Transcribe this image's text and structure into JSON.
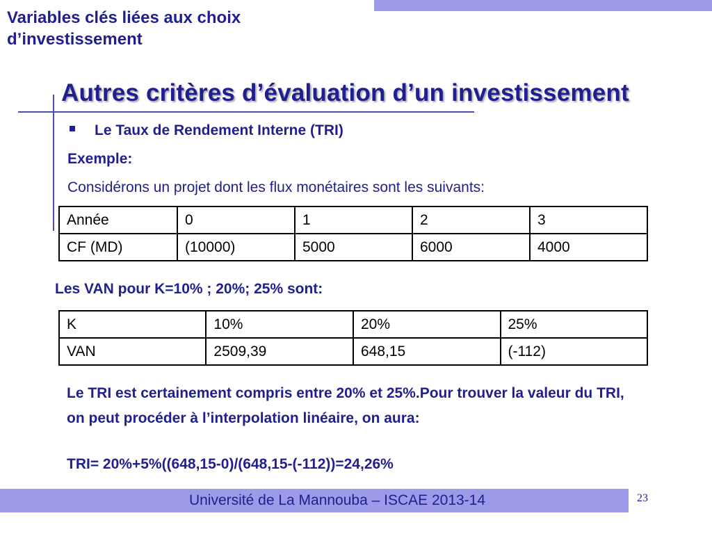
{
  "header": {
    "title": "Variables clés liées aux choix d’investissement"
  },
  "slide": {
    "title": "Autres critères d’évaluation d’un investissement",
    "bullet": "Le Taux de Rendement Interne (TRI)",
    "example_label": "Exemple:",
    "intro": "Considérons un projet dont les flux monétaires sont les suivants:"
  },
  "cashflow_table": {
    "rows": [
      [
        "Année",
        "0",
        "1",
        "2",
        "3"
      ],
      [
        "CF (MD)",
        "(10000)",
        "5000",
        "6000",
        "4000"
      ]
    ]
  },
  "van_heading": "Les VAN pour K=10% ; 20%; 25% sont:",
  "van_table": {
    "rows": [
      [
        "K",
        "10%",
        "20%",
        "25%"
      ],
      [
        "VAN",
        "2509,39",
        "648,15",
        "(-112)"
      ]
    ]
  },
  "conclusion": "Le TRI est certainement compris entre 20% et 25%.Pour trouver la valeur du TRI, on peut procéder à l’interpolation linéaire, on aura:",
  "formula": "TRI= 20%+5%((648,15-0)/(648,15-(-112))=24,26%",
  "footer": {
    "text": "Université de La Mannouba – ISCAE 2013-14",
    "page_number": "23"
  },
  "colors": {
    "accent_bar": "#9b9be8",
    "text_primary": "#1f1f8f"
  }
}
